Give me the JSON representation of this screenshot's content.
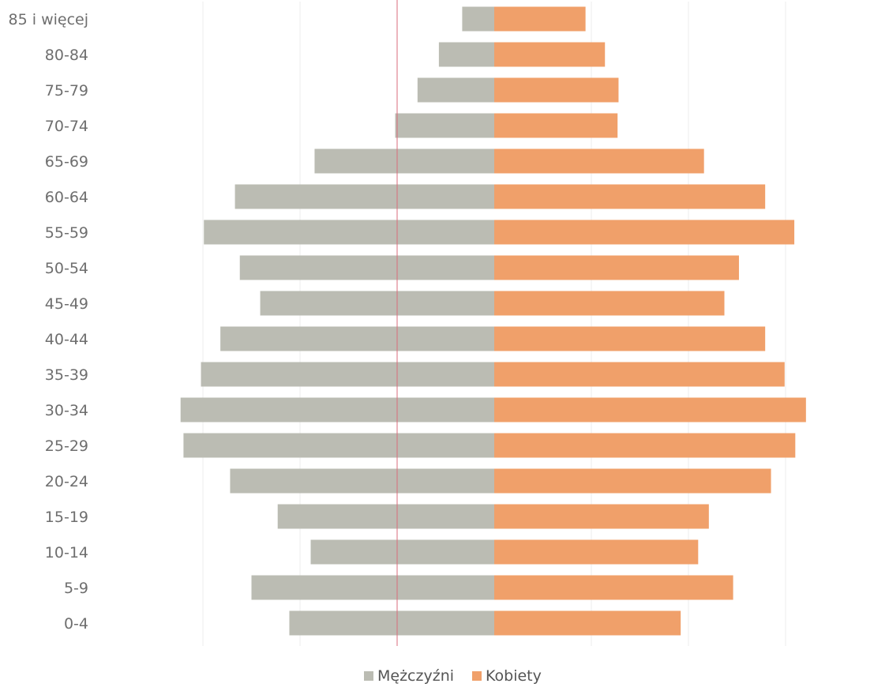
{
  "chart_data": {
    "type": "bar",
    "orientation": "horizontal",
    "layout": "population-pyramid",
    "categories": [
      "85 i więcej",
      "80-84",
      "75-79",
      "70-74",
      "65-69",
      "60-64",
      "55-59",
      "50-54",
      "45-49",
      "40-44",
      "35-39",
      "30-34",
      "25-29",
      "20-24",
      "15-19",
      "10-14",
      "5-9",
      "0-4"
    ],
    "series": [
      {
        "name": "Mężczyźni",
        "side": "left",
        "color": "#bbbcb3",
        "values": [
          0.33,
          0.57,
          0.79,
          1.02,
          1.85,
          2.67,
          2.99,
          2.62,
          2.41,
          2.82,
          3.02,
          3.23,
          3.2,
          2.72,
          2.23,
          1.89,
          2.5,
          2.11
        ]
      },
      {
        "name": "Kobiety",
        "side": "right",
        "color": "#f0a06a",
        "values": [
          0.94,
          1.14,
          1.28,
          1.27,
          2.16,
          2.79,
          3.09,
          2.52,
          2.37,
          2.79,
          2.99,
          3.21,
          3.1,
          2.85,
          2.21,
          2.1,
          2.46,
          1.92
        ]
      }
    ],
    "xlim": [
      -3.5,
      3.5
    ],
    "grid": true,
    "tick_labels_shown": false,
    "legend": {
      "position": "bottom-center",
      "items": [
        {
          "label": "Mężczyźni",
          "color": "#bbbcb3"
        },
        {
          "label": "Kobiety",
          "color": "#f0a06a"
        }
      ]
    },
    "reference_line_color": "#d96b7b"
  }
}
